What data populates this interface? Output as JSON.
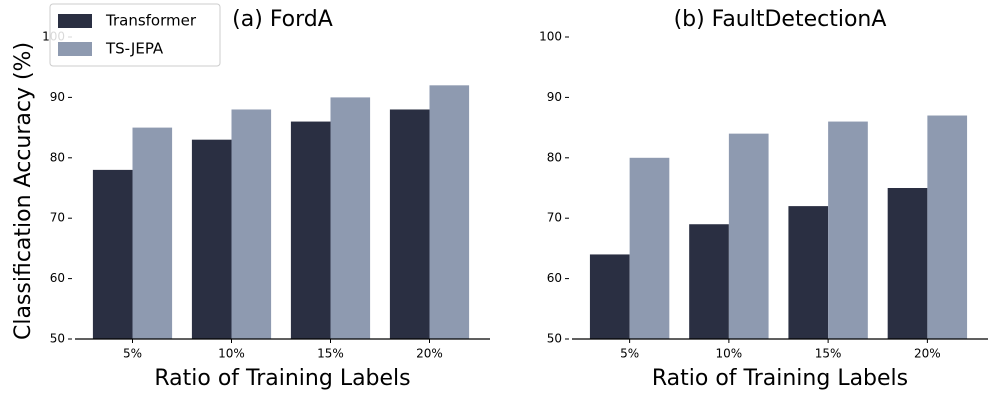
{
  "chart_data": [
    {
      "type": "bar",
      "title": "(a) FordA",
      "x_label": "Ratio of Training Labels",
      "y_label": "Classification Accuracy (%)",
      "categories": [
        "5%",
        "10%",
        "15%",
        "20%"
      ],
      "series": [
        {
          "name": "Transformer",
          "color": "#2a2f42",
          "values": [
            78,
            83,
            86,
            88
          ]
        },
        {
          "name": "TS-JEPA",
          "color": "#8e9ab0",
          "values": [
            85,
            88,
            90,
            92
          ]
        }
      ],
      "ylim": [
        50,
        100
      ],
      "yticks": [
        50,
        60,
        70,
        80,
        90,
        100
      ],
      "legend": "upper left"
    },
    {
      "type": "bar",
      "title": "(b) FaultDetectionA",
      "x_label": "Ratio of Training Labels",
      "categories": [
        "5%",
        "10%",
        "15%",
        "20%"
      ],
      "series": [
        {
          "name": "Transformer",
          "color": "#2a2f42",
          "values": [
            64,
            69,
            72,
            75
          ]
        },
        {
          "name": "TS-JEPA",
          "color": "#8e9ab0",
          "values": [
            80,
            84,
            86,
            87
          ]
        }
      ],
      "ylim": [
        50,
        100
      ],
      "yticks": [
        50,
        60,
        70,
        80,
        90,
        100
      ],
      "legend": false
    }
  ]
}
